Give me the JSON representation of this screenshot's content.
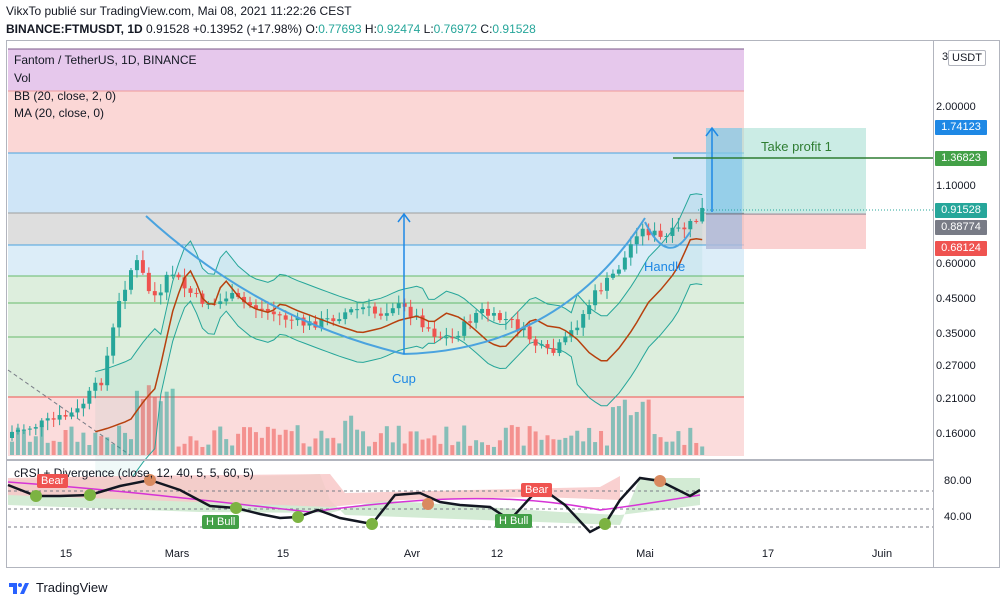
{
  "header": {
    "line1": "VikxTo publié sur TradingView.com, Mai 08, 2021 11:22:26 CEST",
    "symbol": "BINANCE:FTMUSDT, 1D",
    "last": "0.91528",
    "change": "+0.13952 (+17.98%)",
    "o_label": "O:",
    "o": "0.77693",
    "h_label": "H:",
    "h": "0.92474",
    "l_label": "L:",
    "l": "0.76972",
    "c_label": "C:",
    "c": "0.91528"
  },
  "legend": {
    "title": "Fantom / TetherUS, 1D, BINANCE",
    "vol": "Vol",
    "bb": "BB (20, close, 2, 0)",
    "ma": "MA (20, close, 0)",
    "crsi": "cRSI + Divergence (close, 12, 40, 5, 5, 60, 5)"
  },
  "price_axis": {
    "top": "3",
    "currency": "USDT",
    "ticks": [
      "2.00000",
      "1.10000",
      "0.60000",
      "0.45000",
      "0.35000",
      "0.27000",
      "0.21000",
      "0.16000"
    ],
    "tag_tp": "1.74123",
    "tag_line": "1.36823",
    "tag_last": "0.91528",
    "tag_gray": "0.88774",
    "tag_stop": "0.68124"
  },
  "rsi_axis": {
    "ticks": [
      "80.00",
      "40.00"
    ]
  },
  "x_axis": {
    "labels": [
      "15",
      "Mars",
      "15",
      "Avr",
      "12",
      "Mai",
      "17",
      "Juin"
    ]
  },
  "annotations": {
    "take_profit": "Take profit 1",
    "cup": "Cup",
    "handle": "Handle",
    "bear": "Bear",
    "h_bull": "H Bull"
  },
  "footer": {
    "brand": "TradingView"
  },
  "colors": {
    "up": "#26a69a",
    "down": "#ef5350",
    "bb": "#26a69a",
    "ma": "#b7410e",
    "cup": "#4aa3df",
    "take_profit_line": "#2e7d32",
    "tag_blue": "#1e88e5",
    "tag_green": "#43a047",
    "tag_red": "#ef5350",
    "tag_gray": "#787b86",
    "crsi": "#131722",
    "signal": "#d633d6"
  }
}
